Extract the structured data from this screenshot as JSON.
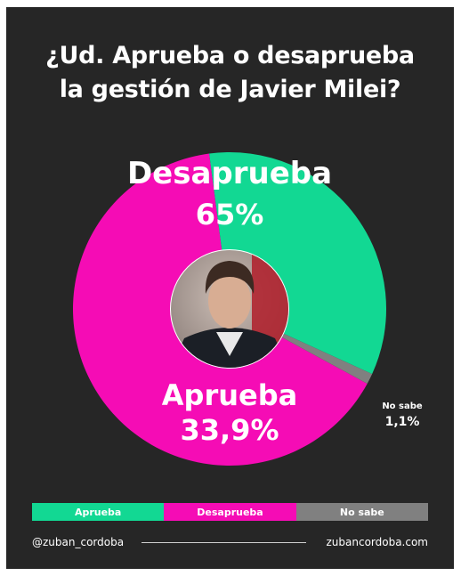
{
  "title": {
    "line1": "¿Ud. Aprueba o desaprueba",
    "line2": "la gestión de Javier Milei?"
  },
  "chart_data": {
    "type": "pie",
    "title": "¿Ud. Aprueba o desaprueba la gestión de Javier Milei?",
    "categories": [
      "Desaprueba",
      "Aprueba",
      "No sabe"
    ],
    "values": [
      65,
      33.9,
      1.1
    ],
    "value_labels": [
      "65%",
      "33,9%",
      "1,1%"
    ],
    "colors": [
      "#f50cb5",
      "#12d893",
      "#808080"
    ],
    "center_image": "portrait-photo",
    "legend_placement": "bottom"
  },
  "legend": [
    {
      "label": "Aprueba",
      "color": "#12d893"
    },
    {
      "label": "Desaprueba",
      "color": "#f50cb5"
    },
    {
      "label": "No sabe",
      "color": "#808080"
    }
  ],
  "footer": {
    "handle": "@zuban_cordoba",
    "website": "zubancordoba.com"
  },
  "colors": {
    "background": "#262626",
    "text": "#ffffff"
  }
}
